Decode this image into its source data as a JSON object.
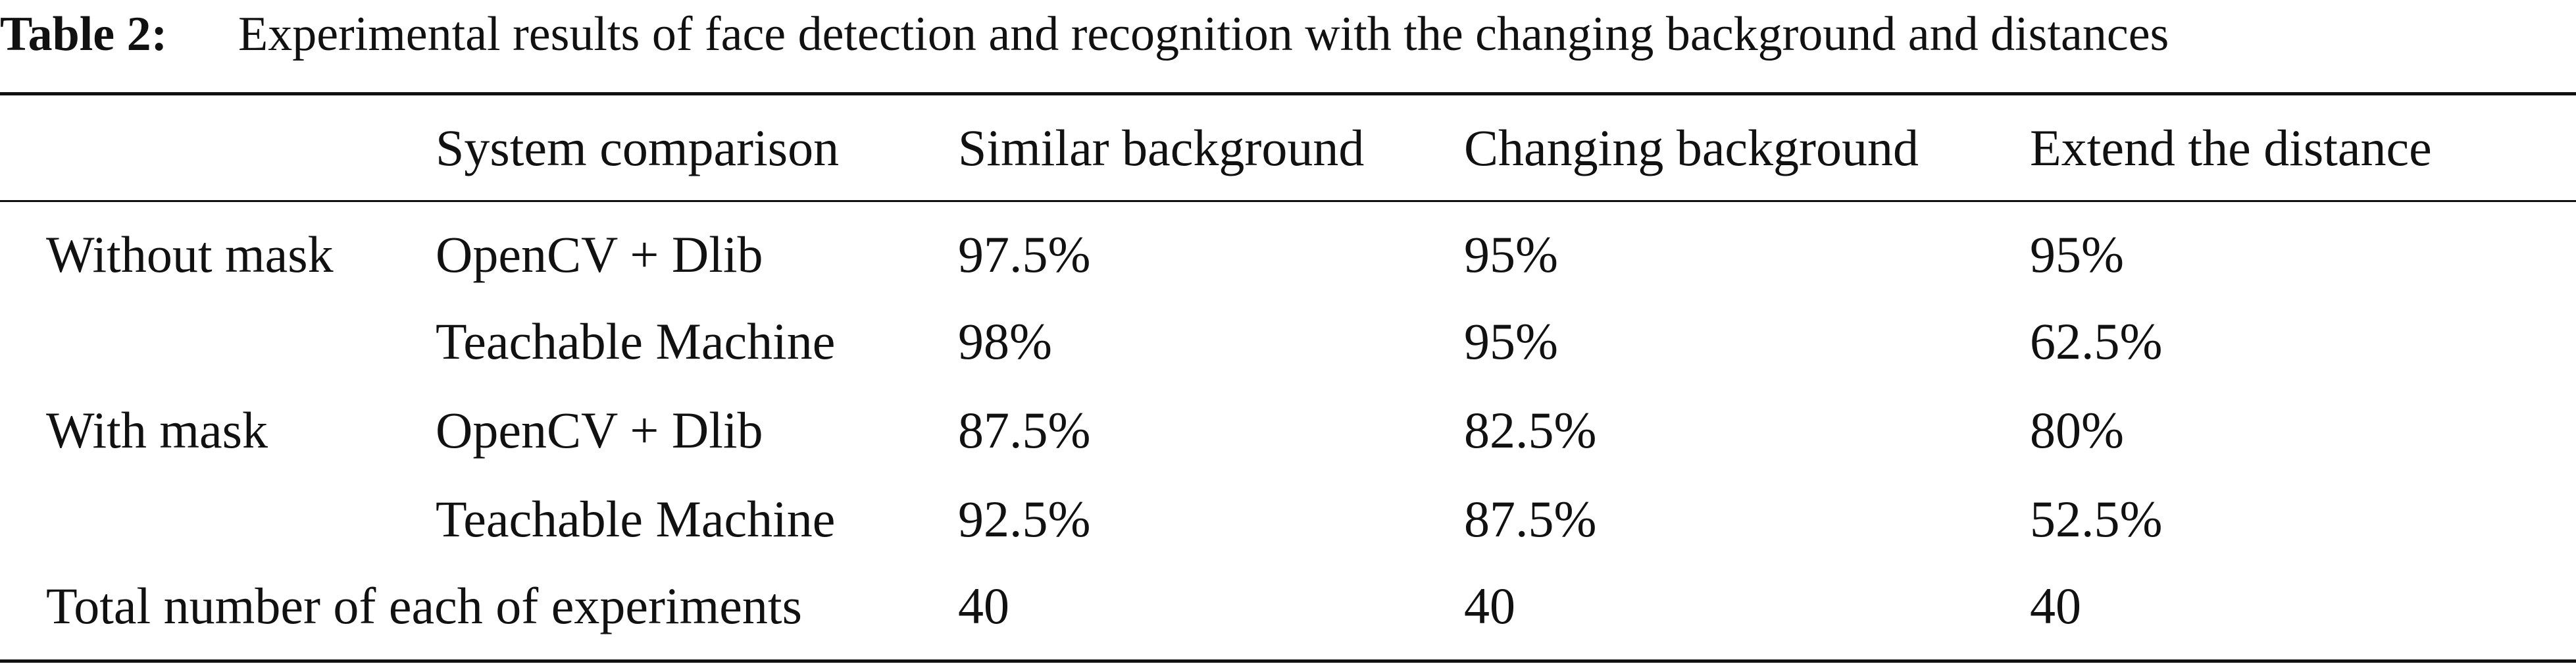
{
  "caption": {
    "label": "Table 2:",
    "text": "Experimental results of face detection and recognition with the changing background and distances"
  },
  "table": {
    "header": [
      "System comparison",
      "Similar background",
      "Changing background",
      "Extend the distance"
    ],
    "rows": [
      {
        "group": "Without mask",
        "system": "OpenCV + Dlib",
        "values": [
          "97.5%",
          "95%",
          "95%"
        ]
      },
      {
        "system": "Teachable Machine",
        "values": [
          "98%",
          "95%",
          "62.5%"
        ]
      },
      {
        "group": "With mask",
        "system": "OpenCV + Dlib",
        "values": [
          "87.5%",
          "82.5%",
          "80%"
        ]
      },
      {
        "system": "Teachable Machine",
        "values": [
          "92.5%",
          "87.5%",
          "52.5%"
        ]
      }
    ],
    "total": {
      "label": "Total number of each of experiments",
      "values": [
        "40",
        "40",
        "40"
      ]
    }
  }
}
